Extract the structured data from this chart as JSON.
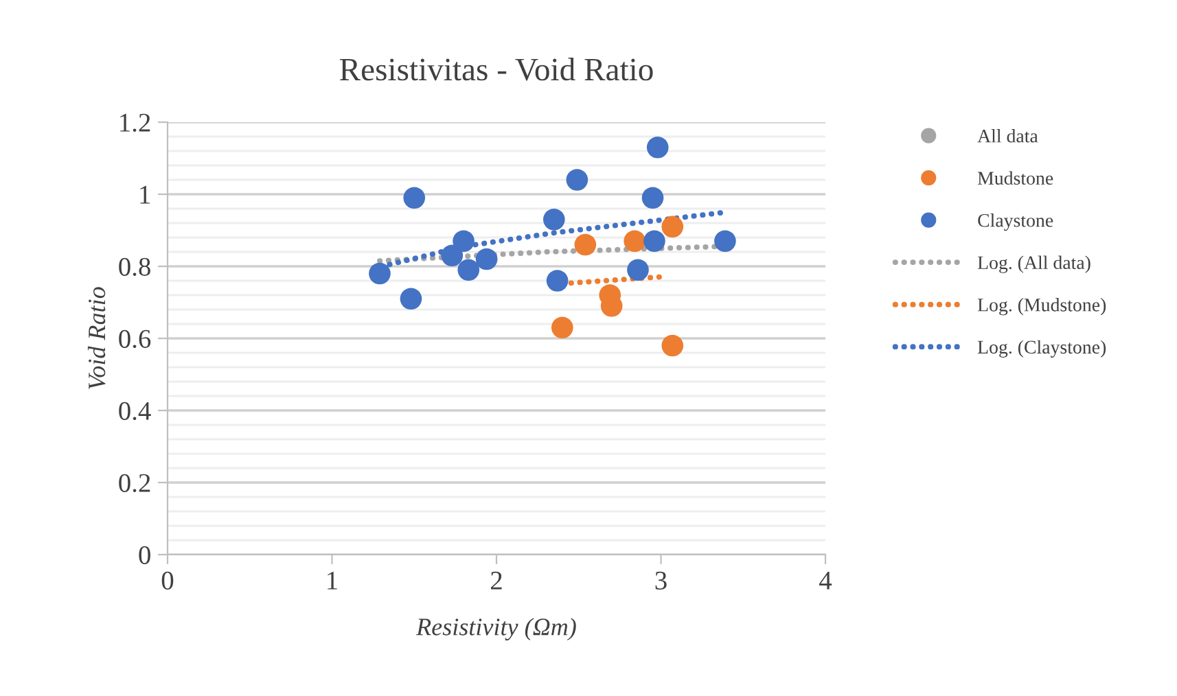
{
  "chart_data": {
    "type": "scatter",
    "title": "Resistivitas - Void Ratio",
    "xlabel": "Resistivity (Ωm)",
    "ylabel": "Void Ratio",
    "xlim": [
      0,
      4
    ],
    "xticks": [
      0,
      1,
      2,
      3,
      4
    ],
    "ylim": [
      0,
      1.2
    ],
    "yticks": [
      {
        "value": 0,
        "label": "0"
      },
      {
        "value": 0.2,
        "label": "0.2"
      },
      {
        "value": 0.4,
        "label": "0.4"
      },
      {
        "value": 0.6,
        "label": "0.6"
      },
      {
        "value": 0.8,
        "label": "0.8"
      },
      {
        "value": 1,
        "label": "1"
      },
      {
        "value": 1.2,
        "label": "1.2"
      }
    ],
    "grid": "y",
    "legend": "right",
    "series": [
      {
        "name": "All data",
        "marker": "circle",
        "color": "#a5a5a5"
      },
      {
        "name": "Mudstone",
        "marker": "circle",
        "color": "#ed7d31",
        "x": [
          2.54,
          2.84,
          3.07,
          2.69,
          2.7,
          2.4,
          3.07
        ],
        "values": [
          0.86,
          0.87,
          0.91,
          0.72,
          0.69,
          0.63,
          0.58
        ]
      },
      {
        "name": "Claystone",
        "marker": "circle",
        "color": "#4472c4",
        "x": [
          1.29,
          1.5,
          1.48,
          1.8,
          1.73,
          1.83,
          1.94,
          2.35,
          2.49,
          2.37,
          2.98,
          2.95,
          2.96,
          2.86,
          3.39
        ],
        "values": [
          0.78,
          0.99,
          0.71,
          0.87,
          0.83,
          0.79,
          0.82,
          0.93,
          1.04,
          0.76,
          1.13,
          0.99,
          0.87,
          0.79,
          0.87
        ]
      },
      {
        "name": "Log. (All data)",
        "type": "line",
        "line_style": "dotted",
        "color": "#a5a5a5",
        "x": [
          1.29,
          2.3,
          3.36
        ],
        "values": [
          0.815,
          0.84,
          0.855
        ]
      },
      {
        "name": "Log. (Mudstone)",
        "type": "line",
        "line_style": "dotted",
        "color": "#ed7d31",
        "x": [
          2.4,
          3.01
        ],
        "values": [
          0.752,
          0.771
        ]
      },
      {
        "name": "Log. (Claystone)",
        "type": "line",
        "line_style": "dotted",
        "color": "#4472c4",
        "x": [
          1.35,
          1.8,
          2.35,
          3.39
        ],
        "values": [
          0.805,
          0.855,
          0.893,
          0.95
        ]
      }
    ]
  }
}
